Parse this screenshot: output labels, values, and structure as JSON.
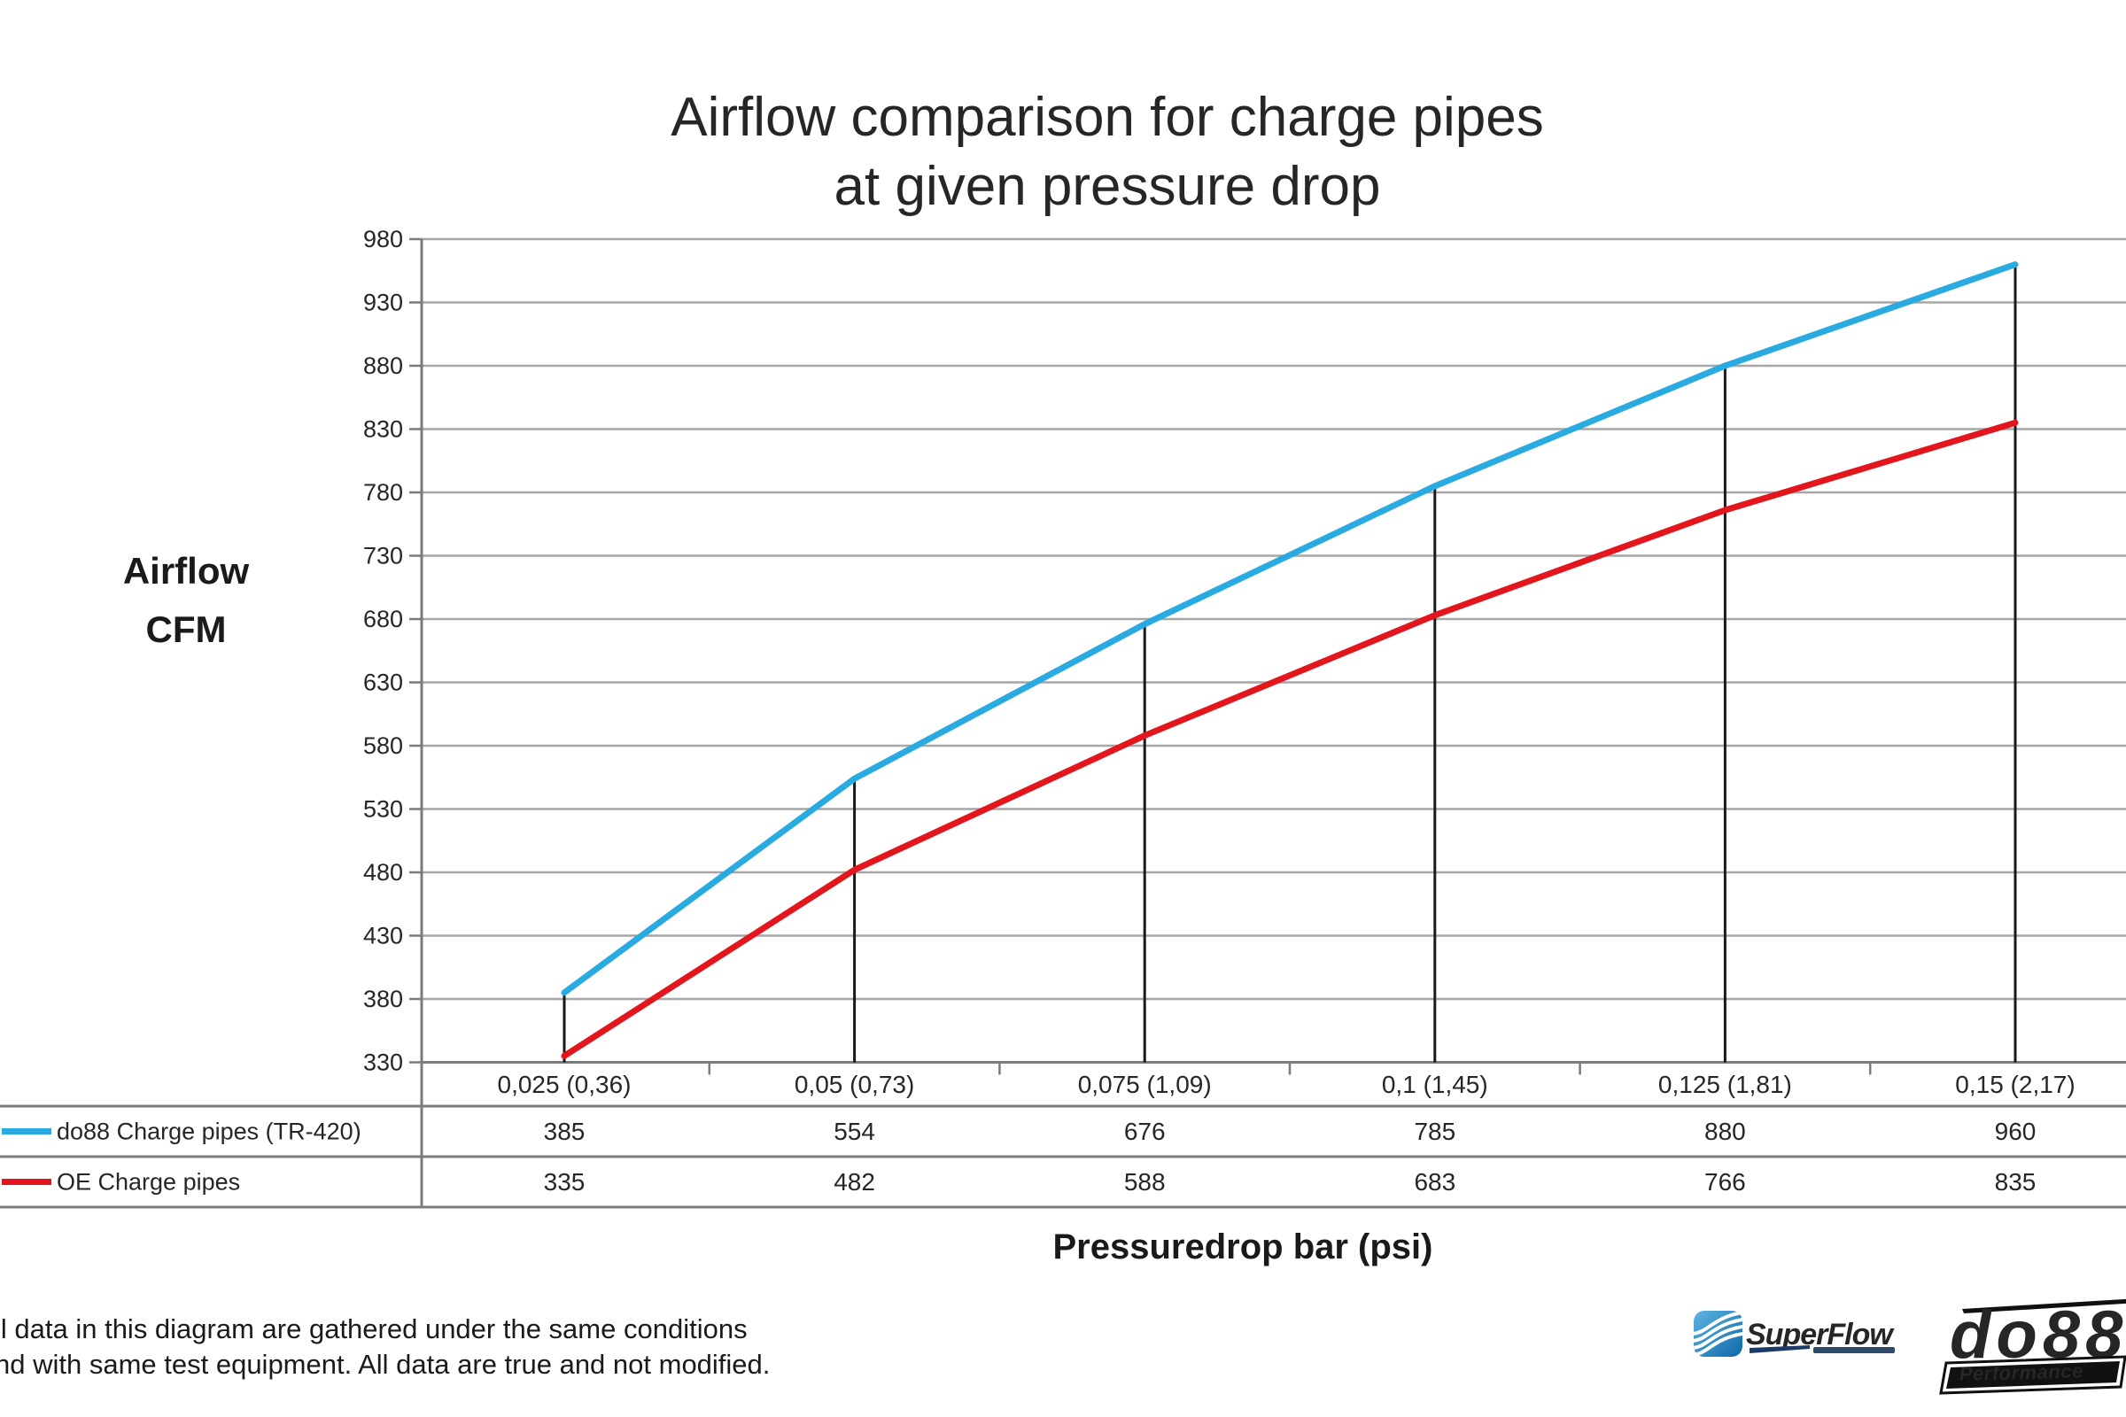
{
  "title": {
    "line1": "Airflow comparison for charge pipes",
    "line2": "at given pressure drop"
  },
  "y_axis_label": {
    "line1": "Airflow",
    "line2": "CFM"
  },
  "x_axis_title": "Pressuredrop bar (psi)",
  "footnote": {
    "line1": "ll data in this diagram are gathered under the same conditions",
    "line2": "nd with same test equipment. All data are true and not modified."
  },
  "logos": {
    "superflow_text": "SuperFlow",
    "do88_text": "do88",
    "do88_subtext": "Performance"
  },
  "colors": {
    "gridline": "#a6a6a6",
    "axis_border": "#7b7b7b",
    "drop_line": "#1a1a1a",
    "text": "#262626",
    "superflow_navy": "#1c3a68",
    "logo_black": "#111111"
  },
  "chart_data": {
    "type": "line",
    "title": "Airflow comparison for charge pipes at given pressure drop",
    "xlabel": "Pressuredrop bar (psi)",
    "ylabel": "Airflow CFM",
    "categories": [
      "0,025 (0,36)",
      "0,05 (0,73)",
      "0,075 (1,09)",
      "0,1 (1,45)",
      "0,125 (1,81)",
      "0,15 (2,17)"
    ],
    "series": [
      {
        "name": "do88 Charge pipes (TR-420)",
        "color": "#29AAE1",
        "values": [
          385,
          554,
          676,
          785,
          880,
          960
        ]
      },
      {
        "name": "OE Charge pipes",
        "color": "#E3161D",
        "values": [
          335,
          482,
          588,
          683,
          766,
          835
        ]
      }
    ],
    "yticks": [
      980,
      930,
      880,
      830,
      780,
      730,
      680,
      630,
      580,
      530,
      480,
      430,
      380,
      330
    ],
    "ylim": [
      330,
      980
    ],
    "grid": true,
    "drop_lines": true,
    "legend_position": "bottom-left-table",
    "value_table": true
  }
}
